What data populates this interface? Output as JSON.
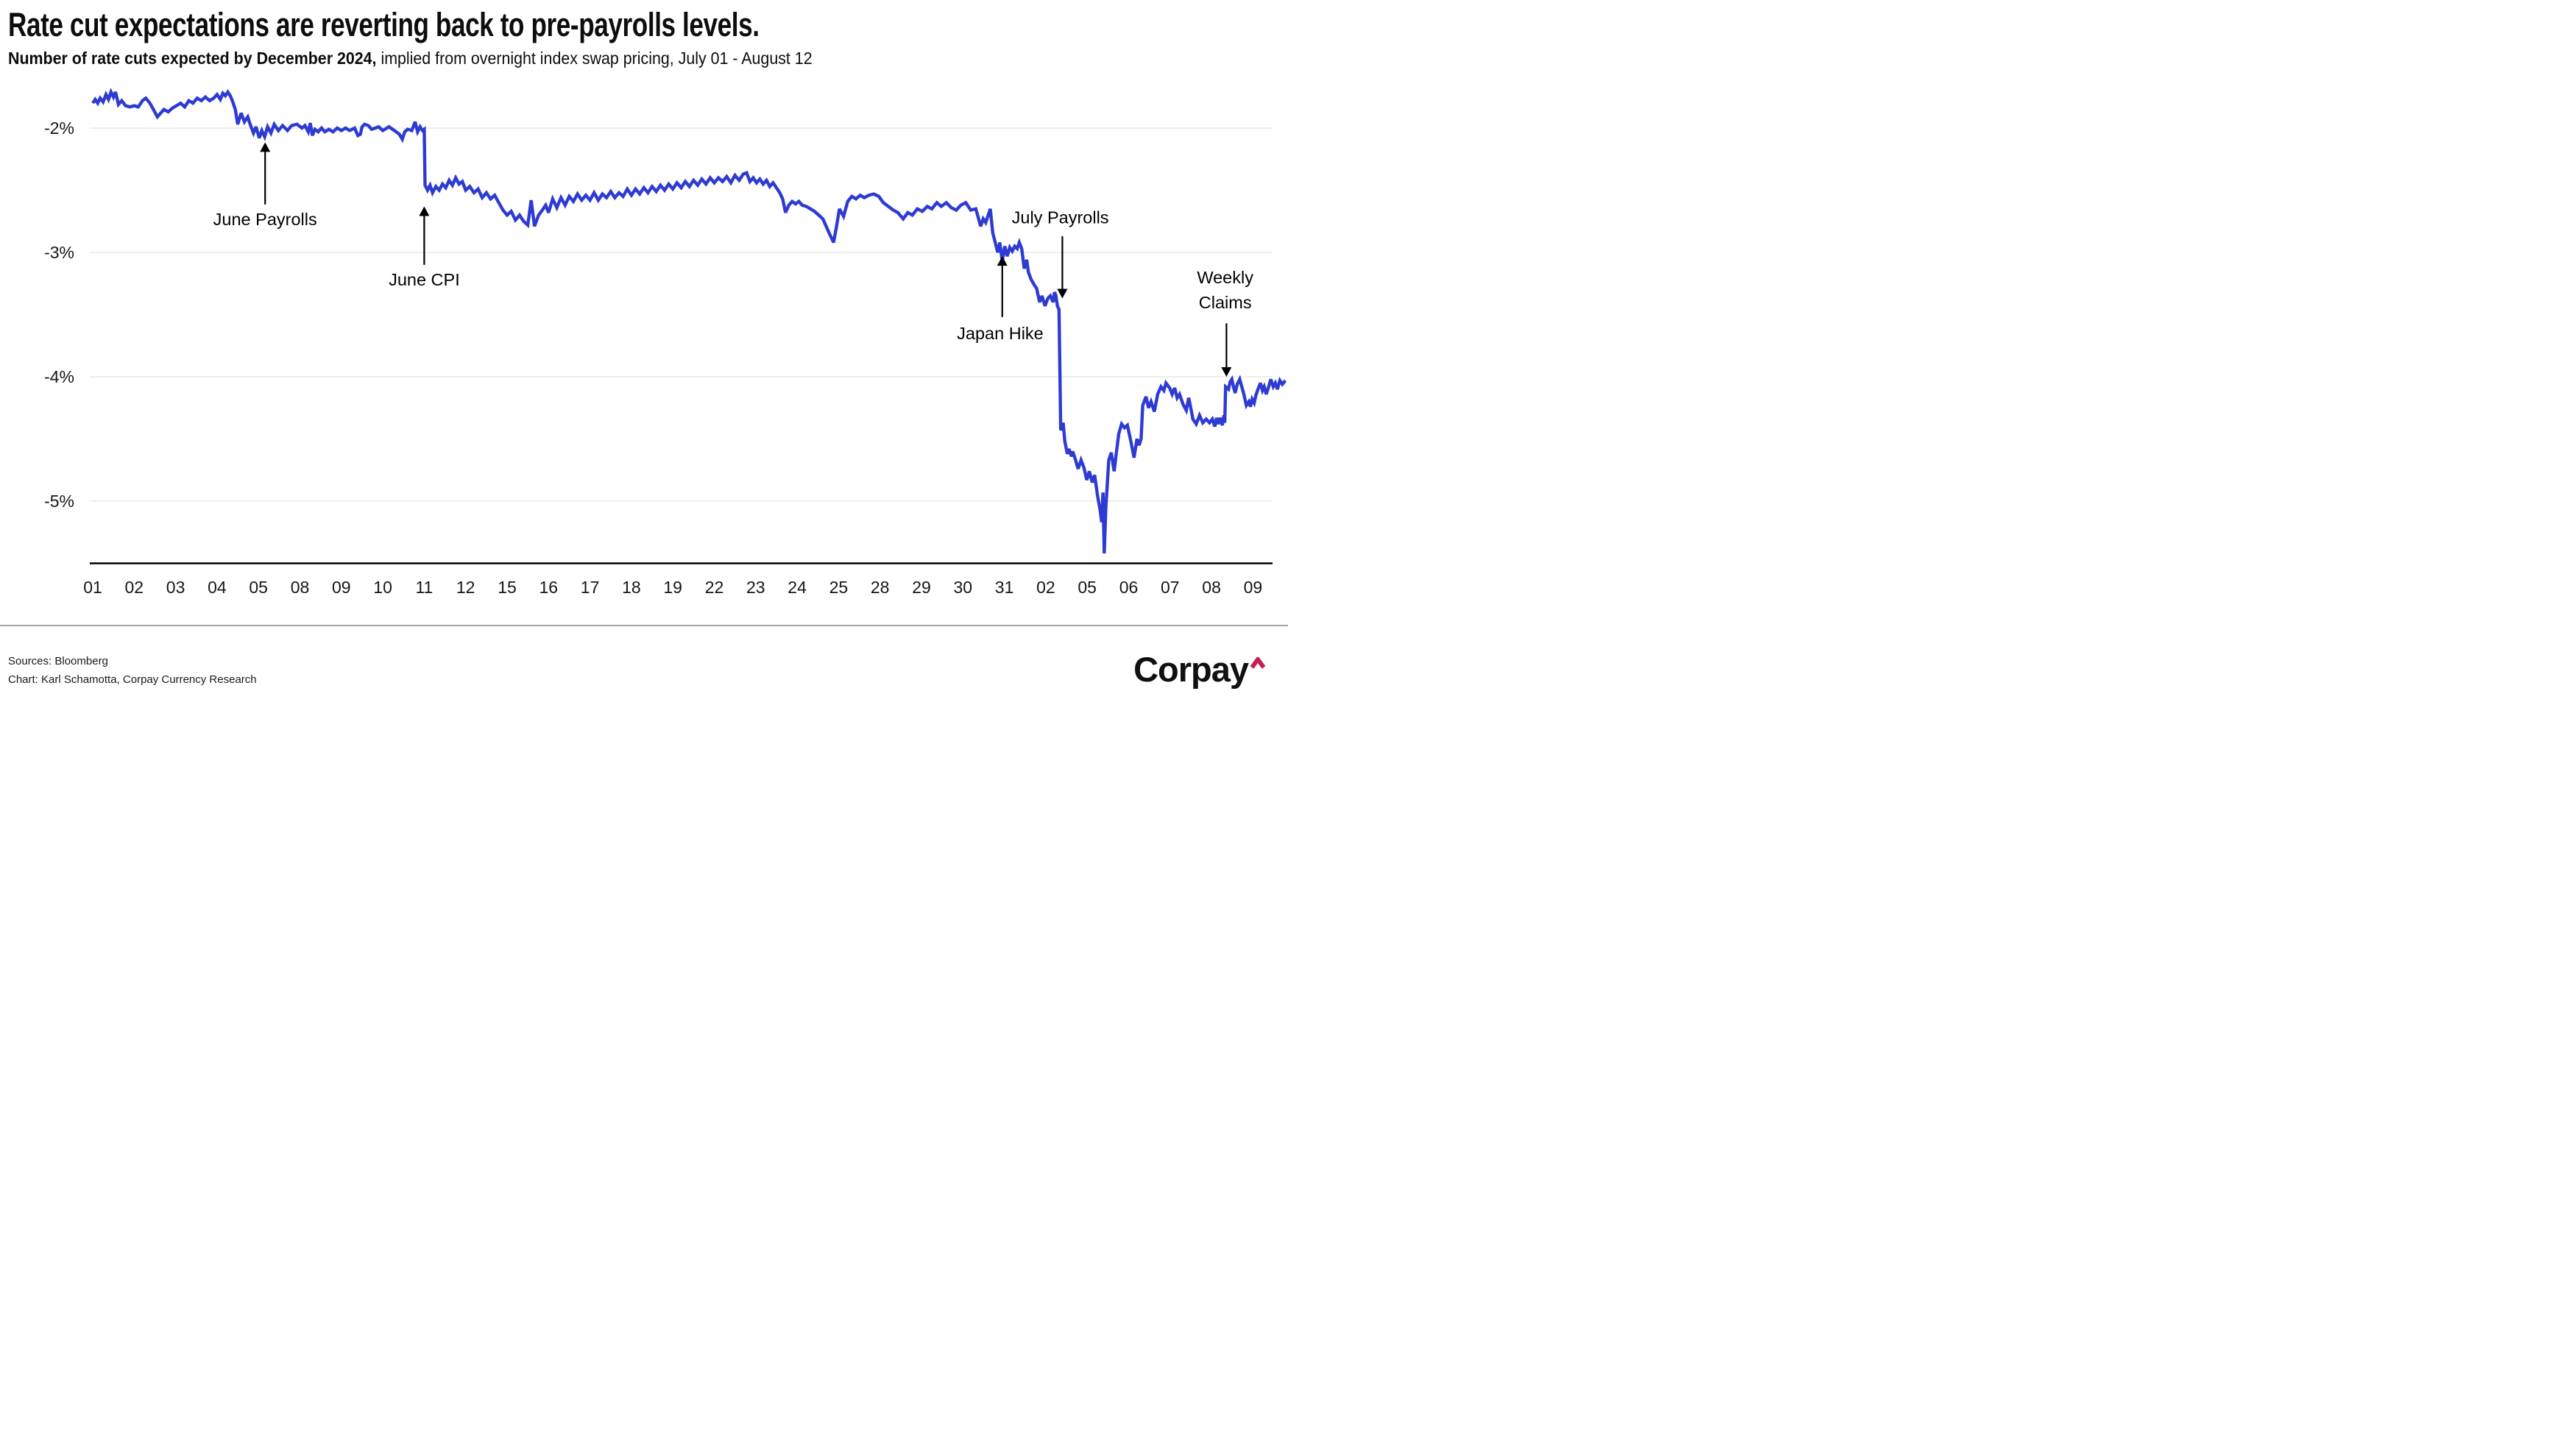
{
  "header": {
    "title": "Rate cut expectations are reverting back to pre-payrolls levels.",
    "subtitle_bold": "Number of rate cuts expected by December 2024,",
    "subtitle_rest": " implied from overnight index swap pricing, July 01 - August 12"
  },
  "footer": {
    "sources": "Sources: Bloomberg",
    "credit": "Chart: Karl Schamotta, Corpay Currency Research",
    "logo_text": "Corpay"
  },
  "colors": {
    "line": "#2E3BD3",
    "grid": "#e8e8e8",
    "axis": "#000000",
    "text": "#161616",
    "caret_red": "#C41F50"
  },
  "chart_data": {
    "type": "line",
    "title": "Rate cut expectations are reverting back to pre-payrolls levels.",
    "subtitle": "Number of rate cuts expected by December 2024, implied from overnight index swap pricing, July 01 - August 12",
    "ylabel": "",
    "xlabel": "",
    "grid": "horizontal",
    "legend": "none",
    "ylim": [
      -5.49,
      -1.55
    ],
    "y_ticks": [
      {
        "label": "-2%",
        "value": -2
      },
      {
        "label": "-3%",
        "value": -3
      },
      {
        "label": "-4%",
        "value": -4
      },
      {
        "label": "-5%",
        "value": -5
      }
    ],
    "x_tick_labels": [
      "01",
      "02",
      "03",
      "04",
      "05",
      "08",
      "09",
      "10",
      "11",
      "12",
      "15",
      "16",
      "17",
      "18",
      "19",
      "22",
      "23",
      "24",
      "25",
      "28",
      "29",
      "30",
      "31",
      "02",
      "05",
      "06",
      "07",
      "08",
      "09"
    ],
    "annotations": [
      {
        "id": "june-payrolls",
        "lines": [
          "June Payrolls"
        ],
        "text_x": 4.16,
        "text_y": -2.735,
        "arrow": {
          "x": 4.16,
          "from": -2.615,
          "to": -2.115,
          "direction": "up"
        }
      },
      {
        "id": "june-cpi",
        "lines": [
          "June CPI"
        ],
        "text_x": 8.0,
        "text_y": -3.22,
        "arrow": {
          "x": 8.0,
          "from": -3.1,
          "to": -2.63,
          "direction": "up"
        }
      },
      {
        "id": "japan-hike",
        "lines": [
          "Japan Hike"
        ],
        "text_x": 21.9,
        "text_y": -3.65,
        "arrow": {
          "x": 21.95,
          "from": -3.52,
          "to": -3.03,
          "direction": "up"
        }
      },
      {
        "id": "july-payrolls",
        "lines": [
          "July Payrolls"
        ],
        "text_x": 23.35,
        "text_y": -2.72,
        "arrow": {
          "x": 23.4,
          "from": -2.87,
          "to": -3.37,
          "direction": "down"
        }
      },
      {
        "id": "weekly-claims",
        "lines": [
          "Weekly",
          "Claims"
        ],
        "text_x": 27.33,
        "text_y": -3.2,
        "arrow": {
          "x": 27.36,
          "from": -3.57,
          "to": -4.0,
          "direction": "down"
        }
      }
    ],
    "points": [
      [
        0.0,
        -1.8
      ],
      [
        0.06,
        -1.77
      ],
      [
        0.12,
        -1.8
      ],
      [
        0.18,
        -1.76
      ],
      [
        0.25,
        -1.79
      ],
      [
        0.32,
        -1.73
      ],
      [
        0.38,
        -1.77
      ],
      [
        0.44,
        -1.71
      ],
      [
        0.5,
        -1.75
      ],
      [
        0.55,
        -1.71
      ],
      [
        0.62,
        -1.81
      ],
      [
        0.7,
        -1.78
      ],
      [
        0.79,
        -1.82
      ],
      [
        0.9,
        -1.83
      ],
      [
        1.0,
        -1.82
      ],
      [
        1.1,
        -1.83
      ],
      [
        1.2,
        -1.78
      ],
      [
        1.28,
        -1.76
      ],
      [
        1.38,
        -1.8
      ],
      [
        1.48,
        -1.86
      ],
      [
        1.56,
        -1.91
      ],
      [
        1.64,
        -1.88
      ],
      [
        1.72,
        -1.85
      ],
      [
        1.82,
        -1.87
      ],
      [
        1.92,
        -1.84
      ],
      [
        2.02,
        -1.82
      ],
      [
        2.12,
        -1.8
      ],
      [
        2.22,
        -1.83
      ],
      [
        2.32,
        -1.78
      ],
      [
        2.42,
        -1.8
      ],
      [
        2.52,
        -1.76
      ],
      [
        2.62,
        -1.78
      ],
      [
        2.72,
        -1.75
      ],
      [
        2.82,
        -1.78
      ],
      [
        2.92,
        -1.76
      ],
      [
        3.0,
        -1.73
      ],
      [
        3.08,
        -1.77
      ],
      [
        3.14,
        -1.72
      ],
      [
        3.2,
        -1.74
      ],
      [
        3.26,
        -1.71
      ],
      [
        3.32,
        -1.74
      ],
      [
        3.38,
        -1.79
      ],
      [
        3.44,
        -1.85
      ],
      [
        3.5,
        -1.97
      ],
      [
        3.58,
        -1.88
      ],
      [
        3.66,
        -1.95
      ],
      [
        3.74,
        -1.91
      ],
      [
        3.8,
        -1.97
      ],
      [
        3.88,
        -2.04
      ],
      [
        3.94,
        -1.99
      ],
      [
        4.02,
        -2.08
      ],
      [
        4.08,
        -2.02
      ],
      [
        4.15,
        -2.07
      ],
      [
        4.22,
        -1.99
      ],
      [
        4.3,
        -2.04
      ],
      [
        4.38,
        -1.97
      ],
      [
        4.48,
        -2.02
      ],
      [
        4.58,
        -1.98
      ],
      [
        4.7,
        -2.02
      ],
      [
        4.8,
        -1.98
      ],
      [
        4.93,
        -1.97
      ],
      [
        5.05,
        -2.0
      ],
      [
        5.12,
        -1.98
      ],
      [
        5.2,
        -2.03
      ],
      [
        5.25,
        -1.96
      ],
      [
        5.3,
        -2.06
      ],
      [
        5.36,
        -2.01
      ],
      [
        5.44,
        -2.03
      ],
      [
        5.52,
        -2.0
      ],
      [
        5.6,
        -2.03
      ],
      [
        5.7,
        -2.01
      ],
      [
        5.8,
        -2.03
      ],
      [
        5.9,
        -2.0
      ],
      [
        6.0,
        -2.02
      ],
      [
        6.1,
        -2.0
      ],
      [
        6.2,
        -2.02
      ],
      [
        6.32,
        -2.0
      ],
      [
        6.4,
        -2.06
      ],
      [
        6.46,
        -2.05
      ],
      [
        6.5,
        -1.99
      ],
      [
        6.56,
        -1.97
      ],
      [
        6.65,
        -1.98
      ],
      [
        6.73,
        -2.01
      ],
      [
        6.82,
        -2.0
      ],
      [
        6.9,
        -1.99
      ],
      [
        7.0,
        -2.02
      ],
      [
        7.15,
        -1.99
      ],
      [
        7.28,
        -2.02
      ],
      [
        7.4,
        -2.05
      ],
      [
        7.47,
        -2.09
      ],
      [
        7.53,
        -2.03
      ],
      [
        7.6,
        -2.01
      ],
      [
        7.7,
        -2.02
      ],
      [
        7.78,
        -1.95
      ],
      [
        7.84,
        -2.03
      ],
      [
        7.9,
        -1.99
      ],
      [
        7.96,
        -2.02
      ],
      [
        8.0,
        -2.01
      ],
      [
        8.02,
        -2.46
      ],
      [
        8.08,
        -2.5
      ],
      [
        8.14,
        -2.46
      ],
      [
        8.2,
        -2.52
      ],
      [
        8.28,
        -2.47
      ],
      [
        8.36,
        -2.5
      ],
      [
        8.44,
        -2.45
      ],
      [
        8.52,
        -2.48
      ],
      [
        8.6,
        -2.42
      ],
      [
        8.68,
        -2.46
      ],
      [
        8.76,
        -2.4
      ],
      [
        8.84,
        -2.45
      ],
      [
        8.92,
        -2.43
      ],
      [
        9.0,
        -2.5
      ],
      [
        9.1,
        -2.47
      ],
      [
        9.2,
        -2.52
      ],
      [
        9.3,
        -2.49
      ],
      [
        9.4,
        -2.56
      ],
      [
        9.5,
        -2.52
      ],
      [
        9.6,
        -2.57
      ],
      [
        9.7,
        -2.54
      ],
      [
        9.8,
        -2.6
      ],
      [
        9.9,
        -2.66
      ],
      [
        10.0,
        -2.7
      ],
      [
        10.1,
        -2.67
      ],
      [
        10.2,
        -2.74
      ],
      [
        10.3,
        -2.7
      ],
      [
        10.4,
        -2.75
      ],
      [
        10.5,
        -2.78
      ],
      [
        10.58,
        -2.58
      ],
      [
        10.66,
        -2.79
      ],
      [
        10.76,
        -2.7
      ],
      [
        10.85,
        -2.66
      ],
      [
        10.93,
        -2.62
      ],
      [
        11.0,
        -2.68
      ],
      [
        11.1,
        -2.57
      ],
      [
        11.2,
        -2.64
      ],
      [
        11.3,
        -2.56
      ],
      [
        11.4,
        -2.62
      ],
      [
        11.5,
        -2.55
      ],
      [
        11.6,
        -2.59
      ],
      [
        11.7,
        -2.53
      ],
      [
        11.8,
        -2.58
      ],
      [
        11.9,
        -2.54
      ],
      [
        12.0,
        -2.58
      ],
      [
        12.1,
        -2.52
      ],
      [
        12.2,
        -2.58
      ],
      [
        12.3,
        -2.53
      ],
      [
        12.4,
        -2.56
      ],
      [
        12.5,
        -2.51
      ],
      [
        12.6,
        -2.56
      ],
      [
        12.7,
        -2.52
      ],
      [
        12.8,
        -2.55
      ],
      [
        12.9,
        -2.49
      ],
      [
        13.0,
        -2.54
      ],
      [
        13.1,
        -2.49
      ],
      [
        13.2,
        -2.53
      ],
      [
        13.3,
        -2.48
      ],
      [
        13.4,
        -2.52
      ],
      [
        13.5,
        -2.47
      ],
      [
        13.6,
        -2.51
      ],
      [
        13.7,
        -2.46
      ],
      [
        13.8,
        -2.5
      ],
      [
        13.9,
        -2.45
      ],
      [
        14.0,
        -2.49
      ],
      [
        14.1,
        -2.44
      ],
      [
        14.2,
        -2.48
      ],
      [
        14.3,
        -2.43
      ],
      [
        14.4,
        -2.47
      ],
      [
        14.5,
        -2.42
      ],
      [
        14.6,
        -2.46
      ],
      [
        14.7,
        -2.41
      ],
      [
        14.8,
        -2.45
      ],
      [
        14.9,
        -2.4
      ],
      [
        15.0,
        -2.44
      ],
      [
        15.1,
        -2.4
      ],
      [
        15.2,
        -2.43
      ],
      [
        15.3,
        -2.39
      ],
      [
        15.4,
        -2.44
      ],
      [
        15.5,
        -2.38
      ],
      [
        15.6,
        -2.42
      ],
      [
        15.7,
        -2.37
      ],
      [
        15.78,
        -2.36
      ],
      [
        15.86,
        -2.43
      ],
      [
        15.94,
        -2.4
      ],
      [
        16.02,
        -2.44
      ],
      [
        16.1,
        -2.41
      ],
      [
        16.18,
        -2.45
      ],
      [
        16.26,
        -2.42
      ],
      [
        16.34,
        -2.47
      ],
      [
        16.42,
        -2.44
      ],
      [
        16.5,
        -2.48
      ],
      [
        16.58,
        -2.52
      ],
      [
        16.65,
        -2.57
      ],
      [
        16.72,
        -2.68
      ],
      [
        16.8,
        -2.62
      ],
      [
        16.88,
        -2.59
      ],
      [
        16.96,
        -2.61
      ],
      [
        17.04,
        -2.59
      ],
      [
        17.12,
        -2.62
      ],
      [
        17.22,
        -2.63
      ],
      [
        17.32,
        -2.65
      ],
      [
        17.42,
        -2.67
      ],
      [
        17.52,
        -2.7
      ],
      [
        17.62,
        -2.73
      ],
      [
        17.7,
        -2.79
      ],
      [
        17.78,
        -2.85
      ],
      [
        17.88,
        -2.92
      ],
      [
        17.95,
        -2.79
      ],
      [
        18.02,
        -2.65
      ],
      [
        18.12,
        -2.71
      ],
      [
        18.22,
        -2.59
      ],
      [
        18.32,
        -2.55
      ],
      [
        18.42,
        -2.57
      ],
      [
        18.52,
        -2.54
      ],
      [
        18.62,
        -2.56
      ],
      [
        18.73,
        -2.54
      ],
      [
        18.85,
        -2.53
      ],
      [
        18.97,
        -2.55
      ],
      [
        19.08,
        -2.6
      ],
      [
        19.2,
        -2.63
      ],
      [
        19.32,
        -2.66
      ],
      [
        19.43,
        -2.68
      ],
      [
        19.56,
        -2.73
      ],
      [
        19.67,
        -2.68
      ],
      [
        19.78,
        -2.7
      ],
      [
        19.9,
        -2.65
      ],
      [
        20.02,
        -2.67
      ],
      [
        20.14,
        -2.63
      ],
      [
        20.25,
        -2.65
      ],
      [
        20.37,
        -2.6
      ],
      [
        20.48,
        -2.63
      ],
      [
        20.6,
        -2.6
      ],
      [
        20.72,
        -2.64
      ],
      [
        20.84,
        -2.66
      ],
      [
        20.95,
        -2.62
      ],
      [
        21.07,
        -2.6
      ],
      [
        21.19,
        -2.66
      ],
      [
        21.31,
        -2.65
      ],
      [
        21.43,
        -2.79
      ],
      [
        21.49,
        -2.73
      ],
      [
        21.55,
        -2.76
      ],
      [
        21.66,
        -2.65
      ],
      [
        21.72,
        -2.84
      ],
      [
        21.84,
        -3.0
      ],
      [
        21.89,
        -2.92
      ],
      [
        21.95,
        -3.07
      ],
      [
        22.01,
        -2.95
      ],
      [
        22.07,
        -3.03
      ],
      [
        22.13,
        -2.96
      ],
      [
        22.19,
        -2.99
      ],
      [
        22.25,
        -2.95
      ],
      [
        22.31,
        -2.97
      ],
      [
        22.36,
        -2.92
      ],
      [
        22.42,
        -2.97
      ],
      [
        22.48,
        -3.13
      ],
      [
        22.54,
        -3.06
      ],
      [
        22.58,
        -3.16
      ],
      [
        22.65,
        -3.22
      ],
      [
        22.72,
        -3.26
      ],
      [
        22.78,
        -3.29
      ],
      [
        22.85,
        -3.4
      ],
      [
        22.91,
        -3.35
      ],
      [
        22.98,
        -3.43
      ],
      [
        23.05,
        -3.37
      ],
      [
        23.11,
        -3.35
      ],
      [
        23.18,
        -3.4
      ],
      [
        23.21,
        -3.32
      ],
      [
        23.24,
        -3.34
      ],
      [
        23.28,
        -3.43
      ],
      [
        23.32,
        -3.46
      ],
      [
        23.36,
        -4.43
      ],
      [
        23.42,
        -4.37
      ],
      [
        23.46,
        -4.52
      ],
      [
        23.52,
        -4.62
      ],
      [
        23.56,
        -4.58
      ],
      [
        23.62,
        -4.64
      ],
      [
        23.65,
        -4.6
      ],
      [
        23.72,
        -4.67
      ],
      [
        23.78,
        -4.74
      ],
      [
        23.85,
        -4.67
      ],
      [
        23.92,
        -4.73
      ],
      [
        23.99,
        -4.83
      ],
      [
        24.05,
        -4.76
      ],
      [
        24.12,
        -4.85
      ],
      [
        24.18,
        -4.79
      ],
      [
        24.25,
        -4.96
      ],
      [
        24.31,
        -5.07
      ],
      [
        24.35,
        -5.17
      ],
      [
        24.38,
        -4.93
      ],
      [
        24.41,
        -5.42
      ],
      [
        24.45,
        -5.05
      ],
      [
        24.52,
        -4.67
      ],
      [
        24.58,
        -4.61
      ],
      [
        24.65,
        -4.76
      ],
      [
        24.7,
        -4.62
      ],
      [
        24.76,
        -4.46
      ],
      [
        24.83,
        -4.38
      ],
      [
        24.9,
        -4.41
      ],
      [
        24.97,
        -4.39
      ],
      [
        25.06,
        -4.53
      ],
      [
        25.13,
        -4.65
      ],
      [
        25.2,
        -4.5
      ],
      [
        25.25,
        -4.55
      ],
      [
        25.3,
        -4.5
      ],
      [
        25.34,
        -4.23
      ],
      [
        25.42,
        -4.16
      ],
      [
        25.48,
        -4.25
      ],
      [
        25.54,
        -4.2
      ],
      [
        25.62,
        -4.28
      ],
      [
        25.7,
        -4.14
      ],
      [
        25.78,
        -4.08
      ],
      [
        25.85,
        -4.11
      ],
      [
        25.9,
        -4.05
      ],
      [
        25.99,
        -4.09
      ],
      [
        26.05,
        -4.14
      ],
      [
        26.11,
        -4.09
      ],
      [
        26.17,
        -4.17
      ],
      [
        26.23,
        -4.14
      ],
      [
        26.31,
        -4.22
      ],
      [
        26.39,
        -4.27
      ],
      [
        26.45,
        -4.17
      ],
      [
        26.5,
        -4.25
      ],
      [
        26.55,
        -4.34
      ],
      [
        26.63,
        -4.38
      ],
      [
        26.71,
        -4.31
      ],
      [
        26.79,
        -4.37
      ],
      [
        26.87,
        -4.34
      ],
      [
        26.95,
        -4.37
      ],
      [
        27.02,
        -4.34
      ],
      [
        27.08,
        -4.4
      ],
      [
        27.12,
        -4.33
      ],
      [
        27.16,
        -4.38
      ],
      [
        27.21,
        -4.33
      ],
      [
        27.26,
        -4.39
      ],
      [
        27.3,
        -4.31
      ],
      [
        27.32,
        -4.37
      ],
      [
        27.34,
        -4.08
      ],
      [
        27.41,
        -4.1
      ],
      [
        27.45,
        -4.04
      ],
      [
        27.49,
        -4.02
      ],
      [
        27.53,
        -4.08
      ],
      [
        27.57,
        -4.13
      ],
      [
        27.62,
        -4.06
      ],
      [
        27.68,
        -4.02
      ],
      [
        27.73,
        -4.08
      ],
      [
        27.78,
        -4.14
      ],
      [
        27.84,
        -4.23
      ],
      [
        27.9,
        -4.2
      ],
      [
        27.94,
        -4.24
      ],
      [
        27.98,
        -4.18
      ],
      [
        28.03,
        -4.21
      ],
      [
        28.07,
        -4.15
      ],
      [
        28.12,
        -4.1
      ],
      [
        28.18,
        -4.05
      ],
      [
        28.23,
        -4.11
      ],
      [
        28.27,
        -4.08
      ],
      [
        28.32,
        -4.14
      ],
      [
        28.38,
        -4.08
      ],
      [
        28.43,
        -4.02
      ],
      [
        28.49,
        -4.08
      ],
      [
        28.54,
        -4.05
      ],
      [
        28.59,
        -4.1
      ],
      [
        28.65,
        -4.03
      ],
      [
        28.71,
        -4.06
      ],
      [
        28.78,
        -4.03
      ]
    ]
  }
}
